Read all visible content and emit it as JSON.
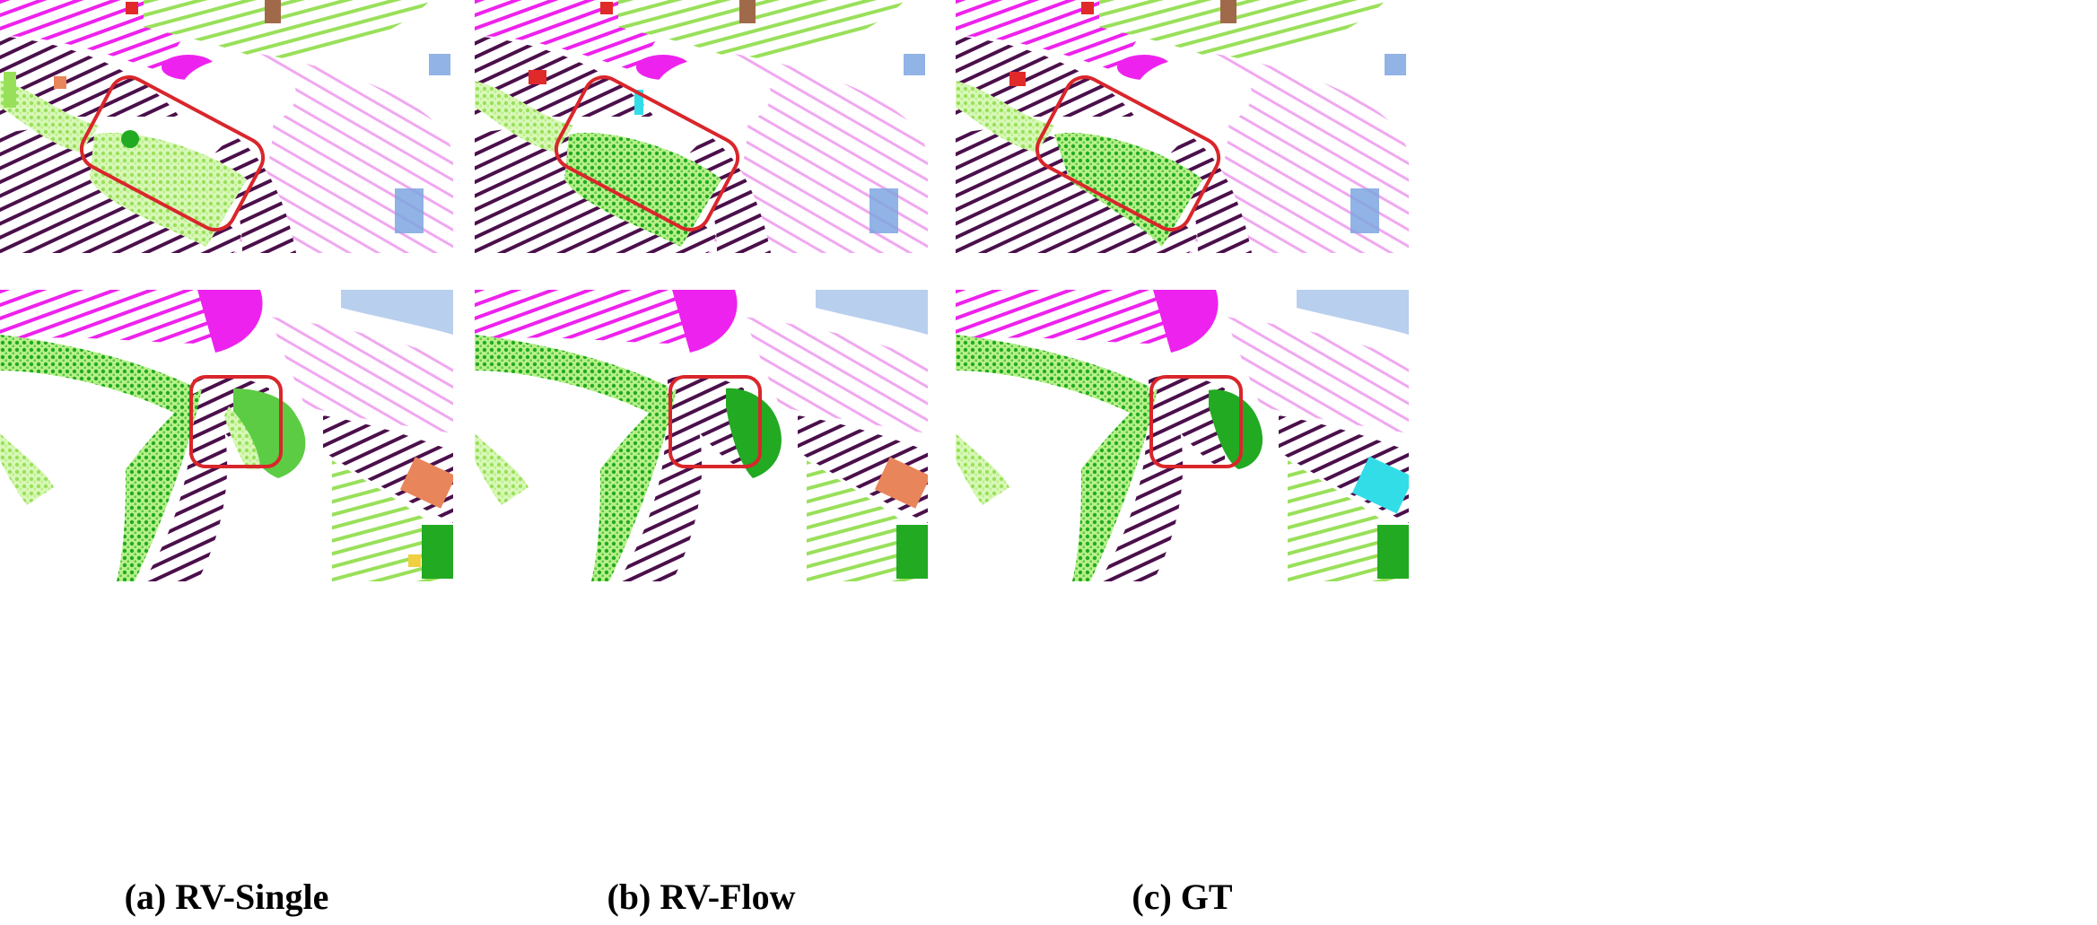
{
  "figure": {
    "columns": [
      {
        "caption": "(a) RV-Single",
        "method": "RV-Single"
      },
      {
        "caption": "(b) RV-Flow",
        "method": "RV-Flow"
      },
      {
        "caption": "(c) GT",
        "method": "GT"
      }
    ],
    "rows": [
      "scene-1",
      "scene-2"
    ],
    "highlight_color": "#d9262b",
    "class_colors": {
      "road": "#4b0f4b",
      "sidewalk": "#ee22ee",
      "terrain": "#f2b6f2",
      "vegetation": "#22aa22",
      "grass": "#99e05a",
      "car": "#7ea6e0",
      "building": "#e9855a",
      "pole": "#f0d040",
      "cyan-object": "#33dde8"
    }
  }
}
